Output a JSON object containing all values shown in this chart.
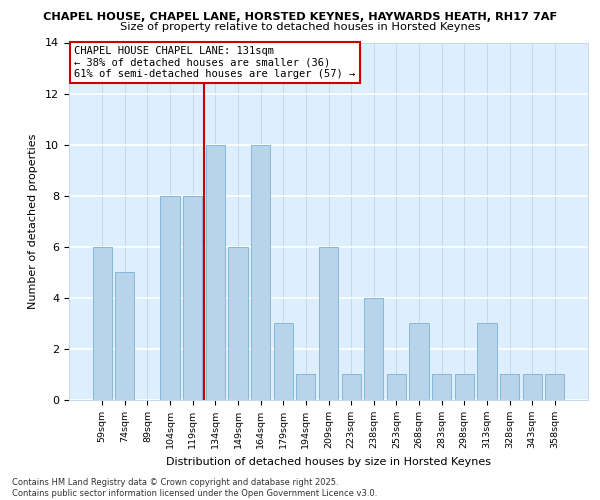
{
  "title1": "CHAPEL HOUSE, CHAPEL LANE, HORSTED KEYNES, HAYWARDS HEATH, RH17 7AF",
  "title2": "Size of property relative to detached houses in Horsted Keynes",
  "xlabel": "Distribution of detached houses by size in Horsted Keynes",
  "ylabel": "Number of detached properties",
  "categories": [
    "59sqm",
    "74sqm",
    "89sqm",
    "104sqm",
    "119sqm",
    "134sqm",
    "149sqm",
    "164sqm",
    "179sqm",
    "194sqm",
    "209sqm",
    "223sqm",
    "238sqm",
    "253sqm",
    "268sqm",
    "283sqm",
    "298sqm",
    "313sqm",
    "328sqm",
    "343sqm",
    "358sqm"
  ],
  "values": [
    6,
    5,
    0,
    8,
    8,
    10,
    6,
    10,
    3,
    1,
    6,
    1,
    4,
    1,
    3,
    1,
    1,
    3,
    1,
    1,
    1
  ],
  "bar_color": "#b8d4eb",
  "bar_edge_color": "#7aafd4",
  "annotation_text": "CHAPEL HOUSE CHAPEL LANE: 131sqm\n← 38% of detached houses are smaller (36)\n61% of semi-detached houses are larger (57) →",
  "annotation_box_facecolor": "#ffffff",
  "annotation_box_edgecolor": "#cc0000",
  "vline_color": "#cc0000",
  "vline_x_index": 4.5,
  "ylim": [
    0,
    14
  ],
  "yticks": [
    0,
    2,
    4,
    6,
    8,
    10,
    12,
    14
  ],
  "footer1": "Contains HM Land Registry data © Crown copyright and database right 2025.",
  "footer2": "Contains public sector information licensed under the Open Government Licence v3.0.",
  "grid_color": "#c8d8e8",
  "bg_color": "#ddeeff",
  "fig_bg_color": "#ffffff"
}
